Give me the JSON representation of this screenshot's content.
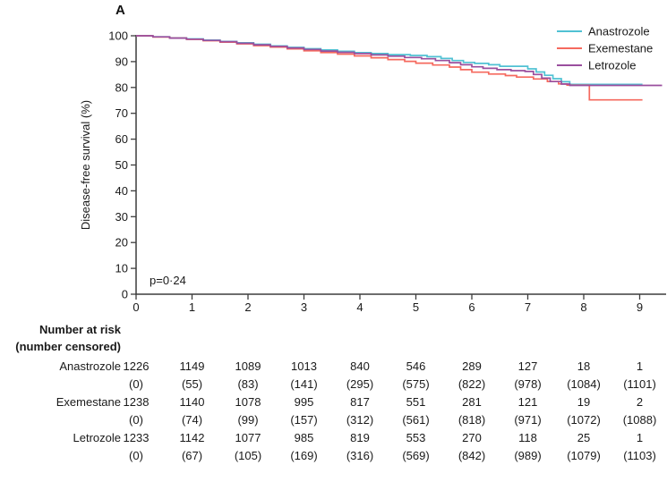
{
  "panel_label": "A",
  "chart_data": {
    "type": "line",
    "subtype": "kaplan-meier-step",
    "title": "",
    "xlabel": "",
    "ylabel": "Disease-free survival (%)",
    "annotation": "p=0·24",
    "xlim": [
      0,
      9.45
    ],
    "ylim": [
      0,
      100
    ],
    "xticks": [
      0,
      1,
      2,
      3,
      4,
      5,
      6,
      7,
      8,
      9
    ],
    "yticks": [
      0,
      10,
      20,
      30,
      40,
      50,
      60,
      70,
      80,
      90,
      100
    ],
    "grid": false,
    "legend_position": "top-right",
    "axis_color": "#3d3d3d",
    "series": [
      {
        "name": "Anastrozole",
        "color": "#50C1D3",
        "points": [
          [
            0,
            100
          ],
          [
            0.3,
            99.6
          ],
          [
            0.6,
            99.2
          ],
          [
            0.9,
            98.8
          ],
          [
            1.2,
            98.3
          ],
          [
            1.5,
            97.8
          ],
          [
            1.8,
            97.3
          ],
          [
            2.1,
            96.7
          ],
          [
            2.4,
            96.1
          ],
          [
            2.7,
            95.5
          ],
          [
            3.0,
            95.0
          ],
          [
            3.3,
            94.5
          ],
          [
            3.6,
            94.0
          ],
          [
            3.9,
            93.5
          ],
          [
            4.2,
            93.1
          ],
          [
            4.5,
            92.7
          ],
          [
            4.9,
            92.4
          ],
          [
            5.2,
            91.9
          ],
          [
            5.45,
            91.2
          ],
          [
            5.65,
            90.4
          ],
          [
            5.85,
            89.7
          ],
          [
            6.05,
            89.3
          ],
          [
            6.3,
            88.8
          ],
          [
            6.5,
            88.2
          ],
          [
            7.0,
            87.2
          ],
          [
            7.15,
            86.0
          ],
          [
            7.3,
            84.7
          ],
          [
            7.45,
            83.4
          ],
          [
            7.6,
            82.2
          ],
          [
            7.75,
            81.2
          ],
          [
            9.05,
            81.2
          ]
        ]
      },
      {
        "name": "Exemestane",
        "color": "#F5695E",
        "points": [
          [
            0,
            100
          ],
          [
            0.3,
            99.5
          ],
          [
            0.6,
            99.1
          ],
          [
            0.9,
            98.6
          ],
          [
            1.2,
            98.1
          ],
          [
            1.5,
            97.5
          ],
          [
            1.8,
            96.9
          ],
          [
            2.1,
            96.2
          ],
          [
            2.4,
            95.6
          ],
          [
            2.7,
            94.9
          ],
          [
            3.0,
            94.2
          ],
          [
            3.3,
            93.5
          ],
          [
            3.6,
            92.9
          ],
          [
            3.9,
            92.2
          ],
          [
            4.2,
            91.5
          ],
          [
            4.5,
            90.8
          ],
          [
            4.8,
            90.1
          ],
          [
            5.0,
            89.4
          ],
          [
            5.3,
            88.7
          ],
          [
            5.6,
            87.9
          ],
          [
            5.8,
            86.9
          ],
          [
            6.0,
            85.9
          ],
          [
            6.3,
            85.2
          ],
          [
            6.6,
            84.6
          ],
          [
            6.8,
            84.0
          ],
          [
            7.1,
            83.3
          ],
          [
            7.35,
            82.3
          ],
          [
            7.55,
            81.4
          ],
          [
            7.7,
            80.9
          ],
          [
            8.1,
            75.2
          ],
          [
            9.05,
            75.2
          ]
        ]
      },
      {
        "name": "Letrozole",
        "color": "#9A4F9E",
        "points": [
          [
            0,
            100
          ],
          [
            0.3,
            99.6
          ],
          [
            0.6,
            99.1
          ],
          [
            0.9,
            98.7
          ],
          [
            1.2,
            98.2
          ],
          [
            1.5,
            97.7
          ],
          [
            1.8,
            97.1
          ],
          [
            2.1,
            96.5
          ],
          [
            2.4,
            95.9
          ],
          [
            2.7,
            95.3
          ],
          [
            3.0,
            94.7
          ],
          [
            3.3,
            94.1
          ],
          [
            3.6,
            93.6
          ],
          [
            3.9,
            93.1
          ],
          [
            4.2,
            92.6
          ],
          [
            4.5,
            92.1
          ],
          [
            4.8,
            91.6
          ],
          [
            5.1,
            91.1
          ],
          [
            5.35,
            90.4
          ],
          [
            5.6,
            89.6
          ],
          [
            5.8,
            88.8
          ],
          [
            6.0,
            88.0
          ],
          [
            6.2,
            87.4
          ],
          [
            6.45,
            86.9
          ],
          [
            6.7,
            86.5
          ],
          [
            6.95,
            86.2
          ],
          [
            7.1,
            85.0
          ],
          [
            7.25,
            83.6
          ],
          [
            7.4,
            82.3
          ],
          [
            7.6,
            81.3
          ],
          [
            7.75,
            80.8
          ],
          [
            9.4,
            80.8
          ]
        ]
      }
    ]
  },
  "risk_table": {
    "header_line1": "Number at risk",
    "header_line2": "(number censored)",
    "timepoints": [
      0,
      1,
      2,
      3,
      4,
      5,
      6,
      7,
      8,
      9
    ],
    "rows": [
      {
        "label": "Anastrozole",
        "counts": [
          "1226",
          "1149",
          "1089",
          "1013",
          "840",
          "546",
          "289",
          "127",
          "18",
          "1"
        ],
        "censored": [
          "(0)",
          "(55)",
          "(83)",
          "(141)",
          "(295)",
          "(575)",
          "(822)",
          "(978)",
          "(1084)",
          "(1101)"
        ]
      },
      {
        "label": "Exemestane",
        "counts": [
          "1238",
          "1140",
          "1078",
          "995",
          "817",
          "551",
          "281",
          "121",
          "19",
          "2"
        ],
        "censored": [
          "(0)",
          "(74)",
          "(99)",
          "(157)",
          "(312)",
          "(561)",
          "(818)",
          "(971)",
          "(1072)",
          "(1088)"
        ]
      },
      {
        "label": "Letrozole",
        "counts": [
          "1233",
          "1142",
          "1077",
          "985",
          "819",
          "553",
          "270",
          "118",
          "25",
          "1"
        ],
        "censored": [
          "(0)",
          "(67)",
          "(105)",
          "(169)",
          "(316)",
          "(569)",
          "(842)",
          "(989)",
          "(1079)",
          "(1103)"
        ]
      }
    ]
  }
}
